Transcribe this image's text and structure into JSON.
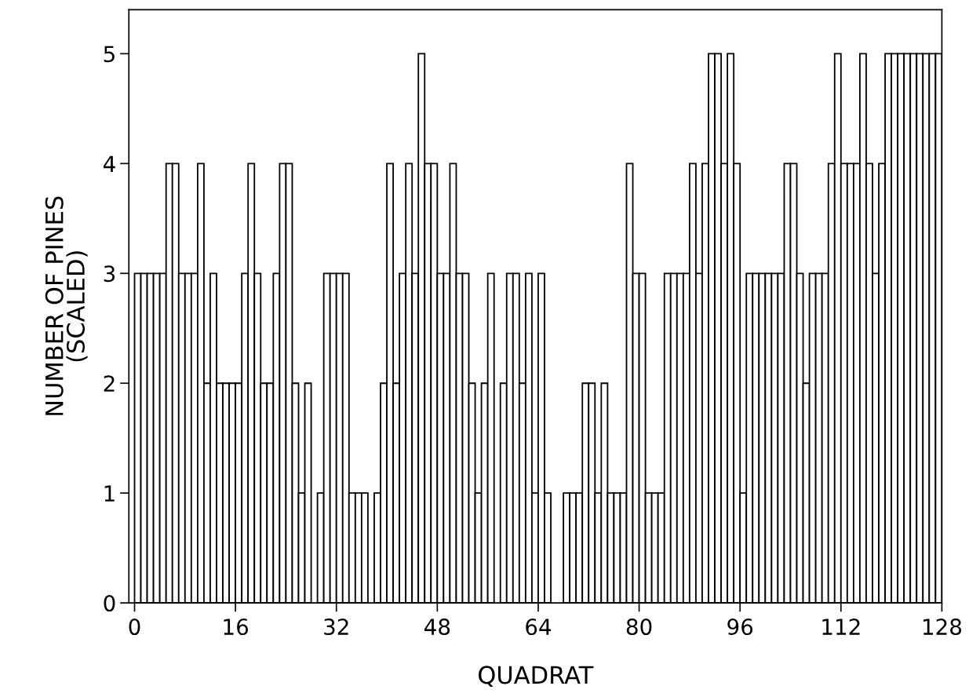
{
  "chart_data": {
    "type": "histogram",
    "xlabel": "QUADRAT",
    "ylabel": "NUMBER OF PINES\n(SCALED)",
    "bins": [
      0,
      1,
      2,
      3,
      4,
      5,
      6,
      7,
      8,
      9,
      10,
      11,
      12,
      13,
      14,
      15,
      16,
      17,
      18,
      19,
      20,
      21,
      22,
      23,
      24,
      25,
      26,
      27,
      28,
      29,
      30,
      31,
      32,
      33,
      34,
      35,
      36,
      37,
      38,
      39,
      40,
      41,
      42,
      43,
      44,
      45,
      46,
      47,
      48,
      49,
      50,
      51,
      52,
      53,
      54,
      55,
      56,
      57,
      58,
      59,
      60,
      61,
      62,
      63,
      64,
      65,
      66,
      67,
      68,
      69,
      70,
      71,
      72,
      73,
      74,
      75,
      76,
      77,
      78,
      79,
      80,
      81,
      82,
      83,
      84,
      85,
      86,
      87,
      88,
      89,
      90,
      91,
      92,
      93,
      94,
      95,
      96,
      97,
      98,
      99,
      100,
      101,
      102,
      103,
      104,
      105,
      106,
      107,
      108,
      109,
      110,
      111,
      112,
      113,
      114,
      115,
      116,
      117,
      118,
      119,
      120,
      121,
      122,
      123,
      124,
      125,
      126,
      127,
      128
    ],
    "values": [
      3,
      3,
      3,
      3,
      3,
      4,
      4,
      3,
      3,
      3,
      4,
      2,
      3,
      2,
      2,
      2,
      2,
      3,
      4,
      3,
      2,
      2,
      3,
      4,
      4,
      2,
      1,
      2,
      0,
      1,
      3,
      3,
      3,
      3,
      1,
      1,
      1,
      0,
      1,
      2,
      4,
      2,
      3,
      4,
      3,
      5,
      4,
      4,
      3,
      3,
      4,
      3,
      3,
      2,
      1,
      2,
      3,
      0,
      2,
      3,
      3,
      2,
      3,
      1,
      3,
      1,
      0,
      0,
      1,
      1,
      1,
      2,
      2,
      1,
      2,
      1,
      1,
      1,
      4,
      3,
      3,
      1,
      1,
      1,
      3,
      3,
      3,
      3,
      4,
      3,
      4,
      5,
      5,
      4,
      5,
      4,
      1,
      3,
      3,
      3,
      3,
      3,
      3,
      4,
      4,
      3,
      2,
      3,
      3,
      3,
      4,
      5,
      4,
      4,
      4,
      5,
      4,
      3,
      4,
      5,
      5,
      5,
      5,
      5,
      5,
      5,
      5,
      5
    ],
    "color": "#ffffff",
    "xlim": [
      -0.9,
      128
    ],
    "xticks": [
      0,
      16,
      32,
      48,
      64,
      80,
      96,
      112,
      128
    ],
    "ylim": [
      0,
      5.4
    ],
    "yticks": [
      0,
      1,
      2,
      3,
      4,
      5
    ],
    "grid": false,
    "legend": false
  }
}
